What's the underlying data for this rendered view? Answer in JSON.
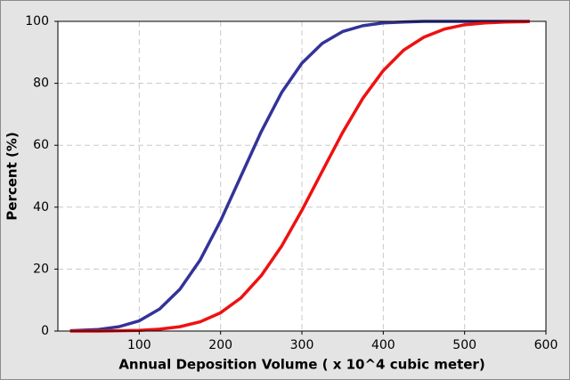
{
  "chart_data": {
    "type": "line",
    "x_label": "Annual Deposition Volume ( x 10^4 cubic meter)",
    "y_label": "Percent (%)",
    "x": [
      15,
      25,
      50,
      75,
      100,
      125,
      150,
      175,
      200,
      225,
      250,
      275,
      300,
      325,
      350,
      375,
      400,
      425,
      450,
      475,
      500,
      525,
      550,
      575,
      580
    ],
    "series": [
      {
        "color": "#333399",
        "values": [
          0.1,
          0.2,
          0.5,
          1.4,
          3.3,
          7.1,
          13.5,
          23.0,
          35.6,
          50,
          64.4,
          77.0,
          86.5,
          92.9,
          96.7,
          98.6,
          99.5,
          99.8,
          100,
          100,
          100,
          100,
          100,
          100,
          100
        ]
      },
      {
        "color": "#ee1111",
        "values": [
          0,
          0,
          0,
          0.1,
          0.2,
          0.6,
          1.4,
          3.0,
          5.9,
          10.7,
          17.9,
          27.4,
          39.0,
          51.6,
          64.1,
          75.2,
          84.1,
          90.7,
          94.9,
          97.5,
          98.9,
          99.5,
          99.8,
          99.9,
          100
        ]
      }
    ],
    "xlim": [
      0,
      600
    ],
    "ylim": [
      0,
      100
    ],
    "xticks": [
      100,
      200,
      300,
      400,
      500,
      600
    ],
    "yticks": [
      0,
      20,
      40,
      60,
      80,
      100
    ],
    "grid": true
  }
}
